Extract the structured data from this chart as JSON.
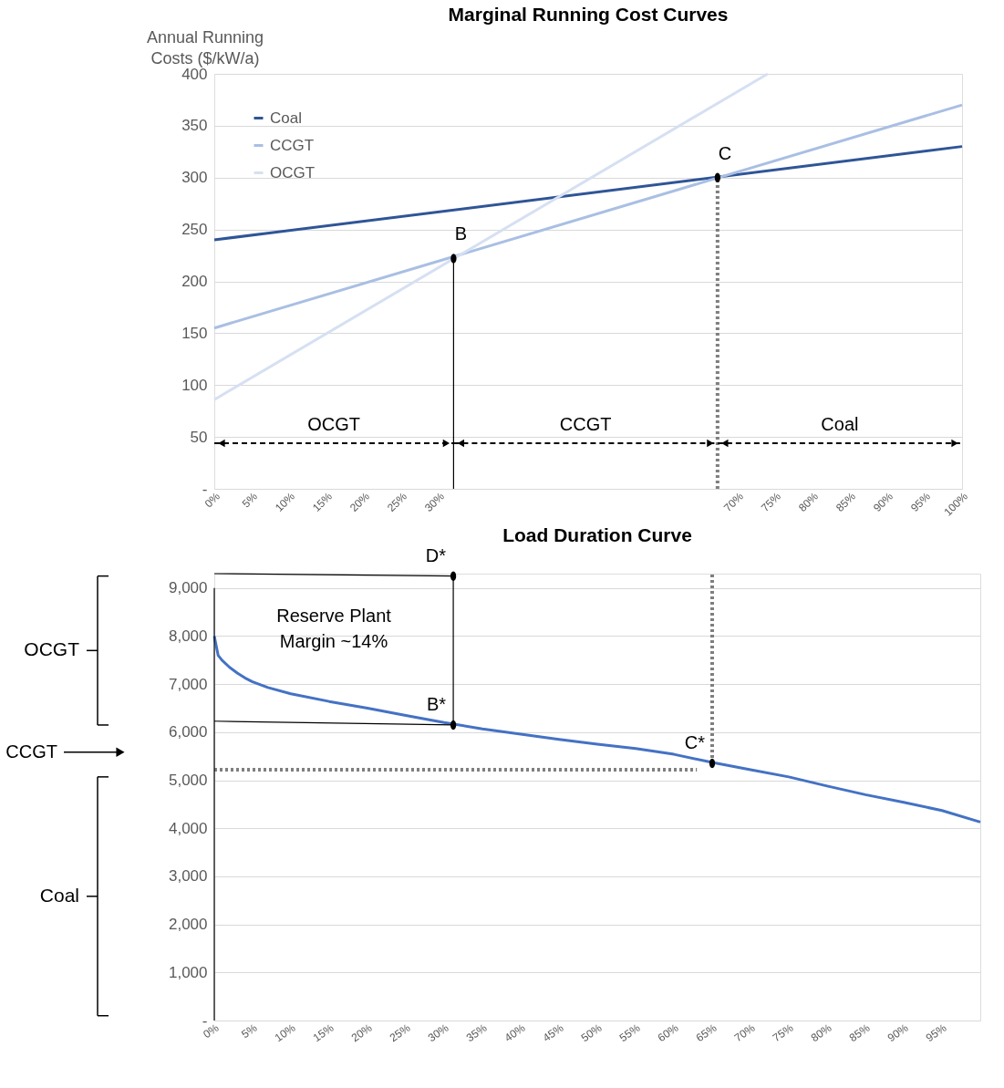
{
  "chart_data": [
    {
      "type": "line",
      "title": "Marginal Running Cost Curves",
      "ylabel": "Annual Running Costs ($/kW/a)",
      "xlim": [
        0,
        100
      ],
      "xticks": [
        {
          "value": 0,
          "label": "0%"
        },
        {
          "value": 5,
          "label": "5%"
        },
        {
          "value": 10,
          "label": "10%"
        },
        {
          "value": 15,
          "label": "15%"
        },
        {
          "value": 20,
          "label": "20%"
        },
        {
          "value": 25,
          "label": "25%"
        },
        {
          "value": 30,
          "label": "30%"
        },
        {
          "value": 70,
          "label": "70%"
        },
        {
          "value": 75,
          "label": "75%"
        },
        {
          "value": 80,
          "label": "80%"
        },
        {
          "value": 85,
          "label": "85%"
        },
        {
          "value": 90,
          "label": "90%"
        },
        {
          "value": 95,
          "label": "95%"
        },
        {
          "value": 100,
          "label": "100%"
        }
      ],
      "ylim": [
        0,
        400
      ],
      "yticks": [
        {
          "value": 0,
          "label": "-"
        },
        50,
        100,
        150,
        200,
        250,
        300,
        350,
        400
      ],
      "grid": "y",
      "legend": "top left",
      "marker": "none",
      "line_style": "solid",
      "series": [
        {
          "name": "Coal",
          "color": "#2f5597",
          "x": [
            0,
            100
          ],
          "values": [
            240,
            330
          ]
        },
        {
          "name": "CCGT",
          "color": "#a9bfe3",
          "x": [
            0,
            100
          ],
          "values": [
            155,
            370
          ]
        },
        {
          "name": "OCGT",
          "color": "#d6e0f2",
          "x": [
            0,
            74
          ],
          "values": [
            86,
            400
          ]
        },
        {
          "color": "#000000",
          "x": [
            32,
            32
          ],
          "values": [
            0,
            222
          ]
        },
        {
          "color": "#7f7f7f",
          "x": [
            67.3,
            67.3
          ],
          "values": [
            0,
            300
          ],
          "line_style": "dotted"
        },
        {
          "type": "scatter",
          "color": "#000000",
          "marker": "circle",
          "x": [
            32,
            67.3
          ],
          "values": [
            222,
            300
          ]
        }
      ],
      "annotations": [
        "OCGT",
        "CCGT",
        "Coal",
        {
          "text": "B",
          "x": 32,
          "y": 222
        },
        {
          "text": "C",
          "x": 67.3,
          "y": 300
        }
      ]
    },
    {
      "type": "line",
      "title": "Load Duration Curve",
      "xlim": [
        0,
        100
      ],
      "xticks": [
        {
          "value": 0,
          "label": "0%"
        },
        {
          "value": 5,
          "label": "5%"
        },
        {
          "value": 10,
          "label": "10%"
        },
        {
          "value": 15,
          "label": "15%"
        },
        {
          "value": 20,
          "label": "20%"
        },
        {
          "value": 25,
          "label": "25%"
        },
        {
          "value": 30,
          "label": "30%"
        },
        {
          "value": 35,
          "label": "35%"
        },
        {
          "value": 40,
          "label": "40%"
        },
        {
          "value": 45,
          "label": "45%"
        },
        {
          "value": 50,
          "label": "50%"
        },
        {
          "value": 55,
          "label": "55%"
        },
        {
          "value": 60,
          "label": "60%"
        },
        {
          "value": 65,
          "label": "65%"
        },
        {
          "value": 70,
          "label": "70%"
        },
        {
          "value": 75,
          "label": "75%"
        },
        {
          "value": 80,
          "label": "80%"
        },
        {
          "value": 85,
          "label": "85%"
        },
        {
          "value": 90,
          "label": "90%"
        },
        {
          "value": 95,
          "label": "95%"
        }
      ],
      "ylim": [
        0,
        9300
      ],
      "yticks": [
        {
          "value": 0,
          "label": "-"
        },
        {
          "value": 1000,
          "label": "1,000"
        },
        {
          "value": 2000,
          "label": "2,000"
        },
        {
          "value": 3000,
          "label": "3,000"
        },
        {
          "value": 4000,
          "label": "4,000"
        },
        {
          "value": 5000,
          "label": "5,000"
        },
        {
          "value": 6000,
          "label": "6,000"
        },
        {
          "value": 7000,
          "label": "7,000"
        },
        {
          "value": 8000,
          "label": "8,000"
        },
        {
          "value": 9000,
          "label": "9,000"
        }
      ],
      "grid": "y",
      "marker": "none",
      "line_style": "solid",
      "series": [
        {
          "color": "#4472c4",
          "x": [
            0,
            0.5,
            1,
            2,
            3,
            4,
            5,
            7,
            10,
            15,
            20,
            25,
            30,
            35,
            40,
            45,
            50,
            55,
            60,
            65,
            70,
            75,
            80,
            85,
            90,
            95,
            100
          ],
          "values": [
            8000,
            7600,
            7500,
            7350,
            7230,
            7130,
            7050,
            6930,
            6800,
            6640,
            6500,
            6350,
            6200,
            6070,
            5960,
            5850,
            5750,
            5660,
            5540,
            5370,
            5220,
            5070,
            4880,
            4700,
            4540,
            4370,
            4130
          ]
        },
        {
          "color": "#000000",
          "x": [
            0,
            31.2
          ],
          "values": [
            9300,
            9250
          ]
        },
        {
          "color": "#000000",
          "x": [
            0,
            31.2
          ],
          "values": [
            6230,
            6150
          ]
        },
        {
          "color": "#000000",
          "x": [
            31.2,
            31.2
          ],
          "values": [
            6150,
            9300
          ]
        },
        {
          "color": "#7f7f7f",
          "x": [
            0,
            63
          ],
          "values": [
            5220,
            5220
          ],
          "line_style": "dotted"
        },
        {
          "color": "#7f7f7f",
          "x": [
            65,
            65
          ],
          "values": [
            5350,
            9300
          ],
          "line_style": "dotted"
        },
        {
          "color": "#000000",
          "x": [
            0,
            0
          ],
          "values": [
            0,
            9000
          ]
        },
        {
          "type": "scatter",
          "color": "#000000",
          "marker": "circle",
          "x": [
            31.2,
            31.2,
            65
          ],
          "values": [
            9250,
            6150,
            5350
          ]
        }
      ],
      "annotations": [
        "Reserve Plant Margin ~14%",
        "OCGT",
        "CCGT",
        "Coal",
        {
          "text": "D*",
          "x": 31.2,
          "y": 9250
        },
        {
          "text": "B*",
          "x": 31.2,
          "y": 6150
        },
        {
          "text": "C*",
          "x": 65,
          "y": 5350
        }
      ]
    }
  ]
}
